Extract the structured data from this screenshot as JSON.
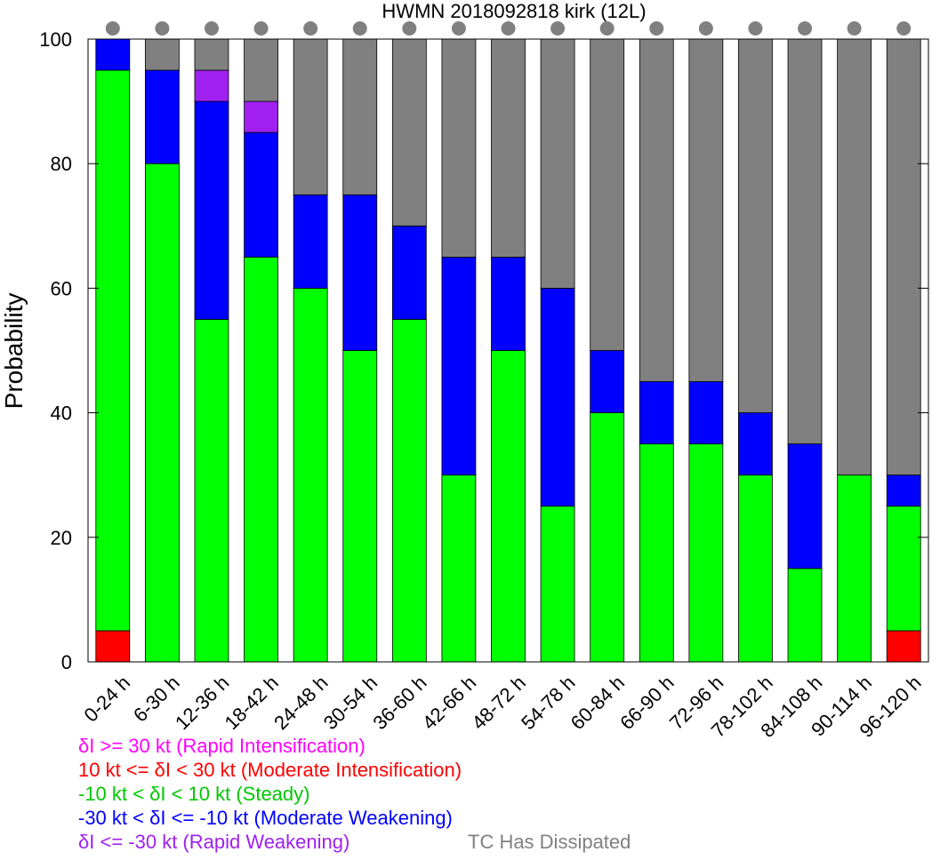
{
  "chart_data": {
    "type": "bar",
    "stacked": true,
    "title": "HWMN 2018092818 kirk (12L)",
    "ylabel": "Probability",
    "xlabel": "",
    "ylim": [
      0,
      100
    ],
    "yticks": [
      "0",
      "20",
      "40",
      "60",
      "80",
      "100"
    ],
    "categories": [
      "0-24 h",
      "6-30 h",
      "12-36 h",
      "18-42 h",
      "24-48 h",
      "30-54 h",
      "36-60 h",
      "42-66 h",
      "48-72 h",
      "54-78 h",
      "60-84 h",
      "66-90 h",
      "72-96 h",
      "78-102 h",
      "84-108 h",
      "90-114 h",
      "96-120 h"
    ],
    "series": [
      {
        "key": "rw",
        "color": "#a020f0",
        "values": [
          0,
          0,
          0,
          0,
          0,
          0,
          0,
          0,
          0,
          0,
          0,
          0,
          0,
          0,
          0,
          0,
          0
        ]
      },
      {
        "key": "mi",
        "color": "#ff0000",
        "values": [
          5,
          0,
          0,
          0,
          0,
          0,
          0,
          0,
          0,
          0,
          0,
          0,
          0,
          0,
          0,
          0,
          5
        ]
      },
      {
        "key": "steady",
        "color": "#00ff00",
        "values": [
          90,
          80,
          55,
          65,
          60,
          50,
          55,
          30,
          50,
          25,
          40,
          35,
          35,
          30,
          15,
          30,
          20
        ]
      },
      {
        "key": "mw",
        "color": "#0000ff",
        "values": [
          5,
          15,
          35,
          20,
          15,
          25,
          15,
          35,
          15,
          35,
          10,
          10,
          10,
          10,
          20,
          0,
          5
        ]
      },
      {
        "key": "rw2",
        "color": "#a020f0",
        "values": [
          0,
          0,
          5,
          5,
          0,
          0,
          0,
          0,
          0,
          0,
          0,
          0,
          0,
          0,
          0,
          0,
          0
        ]
      },
      {
        "key": "ri",
        "color": "#ff00ff",
        "values": [
          0,
          0,
          0,
          0,
          0,
          0,
          0,
          0,
          0,
          0,
          0,
          0,
          0,
          0,
          0,
          0,
          0
        ]
      },
      {
        "key": "dissipated",
        "color": "#808080",
        "values": [
          0,
          5,
          5,
          10,
          25,
          25,
          30,
          35,
          35,
          40,
          50,
          55,
          55,
          60,
          65,
          70,
          70
        ]
      }
    ],
    "marker_color": "#808080",
    "legend": [
      {
        "text": "δI >= 30 kt (Rapid Intensification)",
        "color": "#ff00ff"
      },
      {
        "text": "10 kt <= δI < 30 kt (Moderate Intensification)",
        "color": "#ff0000"
      },
      {
        "text": "-10 kt < δI < 10 kt (Steady)",
        "color": "#00c800"
      },
      {
        "text": "-30 kt < δI <= -10 kt (Moderate Weakening)",
        "color": "#0000ff"
      },
      {
        "text": "δI <= -30 kt (Rapid Weakening)",
        "color": "#a020f0"
      },
      {
        "text": "TC Has Dissipated",
        "color": "#808080"
      }
    ]
  }
}
